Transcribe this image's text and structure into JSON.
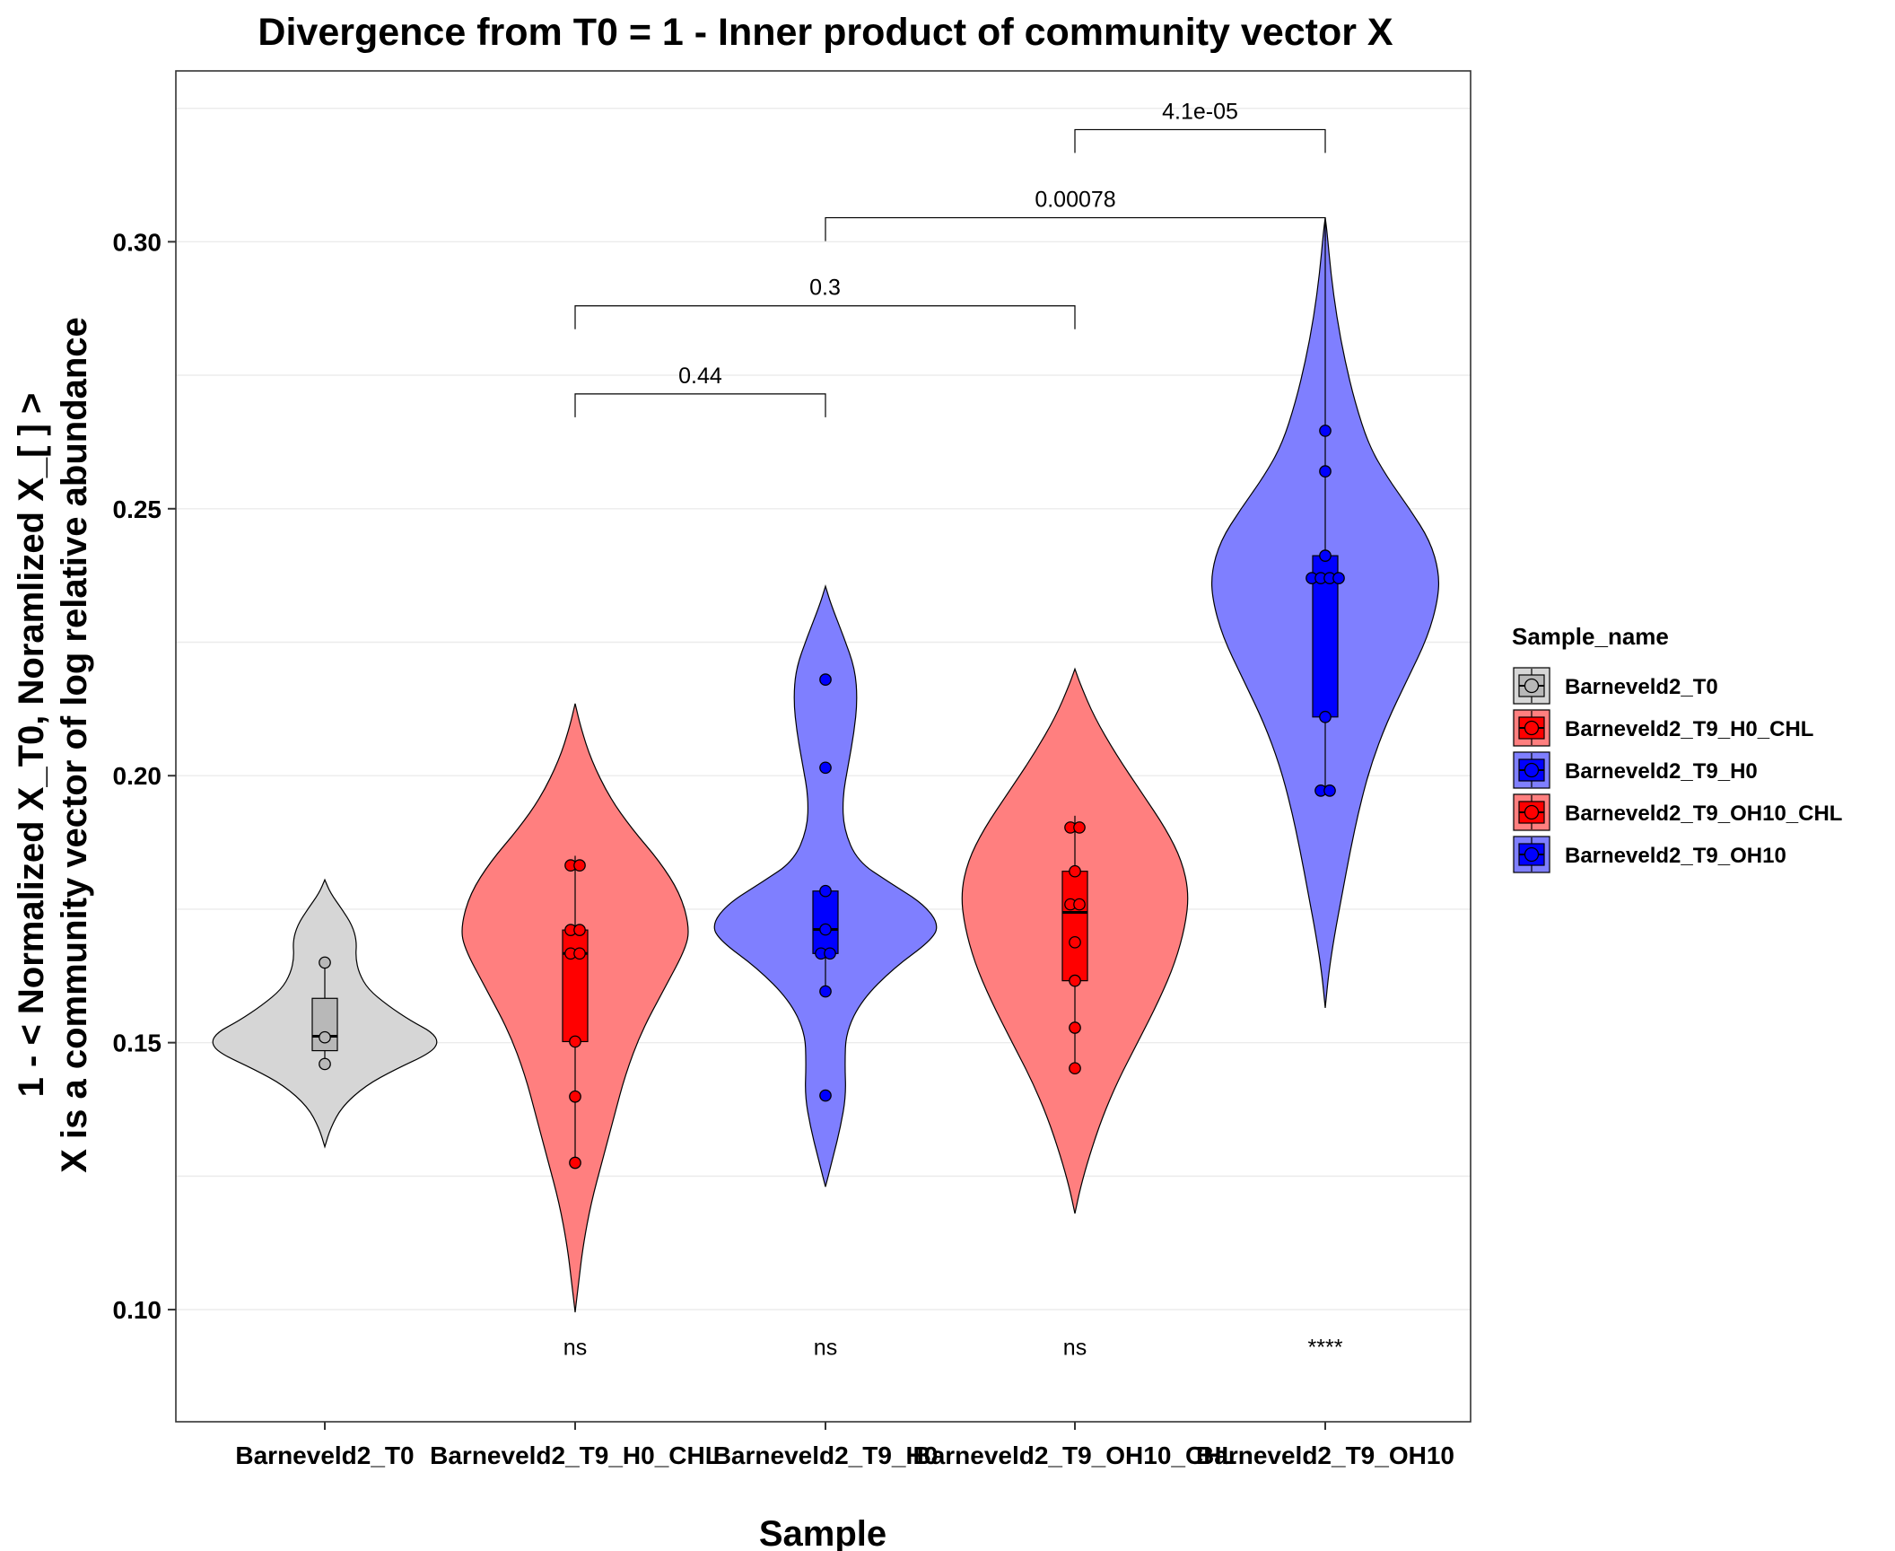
{
  "chart_data": {
    "type": "violin",
    "title": "Divergence from T0 = 1 - Inner product of community vector X",
    "xlabel": "Sample",
    "ylabel_line1": "1 - < Normalized X_T0, Noramlized X_[  ] >",
    "ylabel_line2": "X is a community vector of log relative abundance",
    "ylim": [
      0.079,
      0.332
    ],
    "yticks": [
      0.1,
      0.15,
      0.2,
      0.25,
      0.3
    ],
    "ytick_labels": [
      "0.10",
      "0.15",
      "0.20",
      "0.25",
      "0.30"
    ],
    "grid": true,
    "legend_position": "right",
    "legend_title": "Sample_name",
    "categories": [
      "Barneveld2_T0",
      "Barneveld2_T9_H0_CHL",
      "Barneveld2_T9_H0",
      "Barneveld2_T9_OH10_CHL",
      "Barneveld2_T9_OH10"
    ],
    "series": [
      {
        "name": "Barneveld2_T0",
        "fill": "#b8b8b8",
        "violin_fill": "#d6d6d6",
        "points": [
          0.165,
          0.151,
          0.146
        ],
        "box": {
          "q1": 0.1485,
          "median": 0.1512,
          "q3": 0.1583,
          "min": 0.146,
          "max": 0.165
        },
        "violin": [
          [
            0.1305,
            0
          ],
          [
            0.134,
            0.05
          ],
          [
            0.138,
            0.15
          ],
          [
            0.142,
            0.36
          ],
          [
            0.145,
            0.62
          ],
          [
            0.148,
            0.92
          ],
          [
            0.15,
            1.0
          ],
          [
            0.152,
            0.94
          ],
          [
            0.154,
            0.76
          ],
          [
            0.157,
            0.55
          ],
          [
            0.16,
            0.38
          ],
          [
            0.163,
            0.3
          ],
          [
            0.166,
            0.27
          ],
          [
            0.169,
            0.28
          ],
          [
            0.172,
            0.24
          ],
          [
            0.175,
            0.15
          ],
          [
            0.178,
            0.05
          ],
          [
            0.1805,
            0
          ]
        ],
        "sig": ""
      },
      {
        "name": "Barneveld2_T9_H0_CHL",
        "fill": "#ff0000",
        "violin_fill": "#ff7f7f",
        "points": [
          0.1832,
          0.1832,
          0.1711,
          0.1711,
          0.1667,
          0.1667,
          0.1502,
          0.1399,
          0.1275
        ],
        "box": {
          "q1": 0.1502,
          "median": 0.1667,
          "q3": 0.1711,
          "min": 0.1275,
          "max": 0.185
        },
        "violin": [
          [
            0.0995,
            0
          ],
          [
            0.105,
            0.03
          ],
          [
            0.112,
            0.07
          ],
          [
            0.12,
            0.14
          ],
          [
            0.128,
            0.24
          ],
          [
            0.136,
            0.34
          ],
          [
            0.144,
            0.44
          ],
          [
            0.152,
            0.58
          ],
          [
            0.16,
            0.78
          ],
          [
            0.168,
            0.98
          ],
          [
            0.172,
            1.0
          ],
          [
            0.178,
            0.92
          ],
          [
            0.184,
            0.74
          ],
          [
            0.19,
            0.5
          ],
          [
            0.196,
            0.3
          ],
          [
            0.203,
            0.14
          ],
          [
            0.209,
            0.05
          ],
          [
            0.2135,
            0
          ]
        ],
        "sig": "ns"
      },
      {
        "name": "Barneveld2_T9_H0",
        "fill": "#0000ff",
        "violin_fill": "#7f7fff",
        "points": [
          0.218,
          0.2015,
          0.1784,
          0.1712,
          0.1667,
          0.1667,
          0.1596,
          0.1401
        ],
        "box": {
          "q1": 0.1667,
          "median": 0.1712,
          "q3": 0.1784,
          "min": 0.1596,
          "max": 0.1784
        },
        "violin": [
          [
            0.123,
            0
          ],
          [
            0.128,
            0.06
          ],
          [
            0.134,
            0.13
          ],
          [
            0.14,
            0.18
          ],
          [
            0.146,
            0.17
          ],
          [
            0.152,
            0.18
          ],
          [
            0.158,
            0.32
          ],
          [
            0.164,
            0.6
          ],
          [
            0.169,
            0.92
          ],
          [
            0.172,
            1.0
          ],
          [
            0.176,
            0.86
          ],
          [
            0.18,
            0.56
          ],
          [
            0.184,
            0.28
          ],
          [
            0.19,
            0.16
          ],
          [
            0.196,
            0.15
          ],
          [
            0.202,
            0.2
          ],
          [
            0.208,
            0.25
          ],
          [
            0.214,
            0.28
          ],
          [
            0.22,
            0.26
          ],
          [
            0.226,
            0.16
          ],
          [
            0.232,
            0.05
          ],
          [
            0.2355,
            0
          ]
        ],
        "sig": "ns"
      },
      {
        "name": "Barneveld2_T9_OH10_CHL",
        "fill": "#ff0000",
        "violin_fill": "#ff7f7f",
        "points": [
          0.1903,
          0.1903,
          0.1821,
          0.1759,
          0.1759,
          0.1688,
          0.1616,
          0.1528,
          0.1452
        ],
        "box": {
          "q1": 0.1616,
          "median": 0.1744,
          "q3": 0.1821,
          "min": 0.1452,
          "max": 0.1925
        },
        "violin": [
          [
            0.118,
            0
          ],
          [
            0.123,
            0.05
          ],
          [
            0.129,
            0.13
          ],
          [
            0.136,
            0.24
          ],
          [
            0.143,
            0.38
          ],
          [
            0.15,
            0.55
          ],
          [
            0.158,
            0.74
          ],
          [
            0.165,
            0.88
          ],
          [
            0.172,
            0.97
          ],
          [
            0.178,
            1.0
          ],
          [
            0.184,
            0.94
          ],
          [
            0.19,
            0.8
          ],
          [
            0.197,
            0.58
          ],
          [
            0.204,
            0.36
          ],
          [
            0.211,
            0.17
          ],
          [
            0.217,
            0.05
          ],
          [
            0.22,
            0
          ]
        ],
        "sig": "ns"
      },
      {
        "name": "Barneveld2_T9_OH10",
        "fill": "#0000ff",
        "violin_fill": "#7f7fff",
        "points": [
          0.2646,
          0.257,
          0.2412,
          0.237,
          0.237,
          0.237,
          0.237,
          0.211,
          0.1972,
          0.1972
        ],
        "box": {
          "q1": 0.211,
          "median": 0.237,
          "q3": 0.2412,
          "min": 0.1972,
          "max": 0.304
        },
        "violin": [
          [
            0.1565,
            0
          ],
          [
            0.163,
            0.03
          ],
          [
            0.17,
            0.08
          ],
          [
            0.178,
            0.15
          ],
          [
            0.186,
            0.22
          ],
          [
            0.194,
            0.3
          ],
          [
            0.202,
            0.4
          ],
          [
            0.21,
            0.54
          ],
          [
            0.218,
            0.72
          ],
          [
            0.226,
            0.9
          ],
          [
            0.233,
            0.99
          ],
          [
            0.238,
            1.0
          ],
          [
            0.244,
            0.92
          ],
          [
            0.25,
            0.74
          ],
          [
            0.256,
            0.54
          ],
          [
            0.262,
            0.38
          ],
          [
            0.27,
            0.26
          ],
          [
            0.278,
            0.17
          ],
          [
            0.286,
            0.1
          ],
          [
            0.294,
            0.05
          ],
          [
            0.302,
            0.015
          ],
          [
            0.3045,
            0
          ]
        ],
        "sig": "****"
      }
    ],
    "comparisons": [
      {
        "from": 1,
        "to": 2,
        "y": 0.2715,
        "label": "0.44"
      },
      {
        "from": 1,
        "to": 3,
        "y": 0.288,
        "label": "0.3"
      },
      {
        "from": 2,
        "to": 4,
        "y": 0.3045,
        "label": "0.00078"
      },
      {
        "from": 3,
        "to": 4,
        "y": 0.321,
        "label": "4.1e-05"
      }
    ],
    "colors": {
      "panel_border": "#333333",
      "grid": "#ebebeb",
      "outline": "#000000"
    }
  }
}
